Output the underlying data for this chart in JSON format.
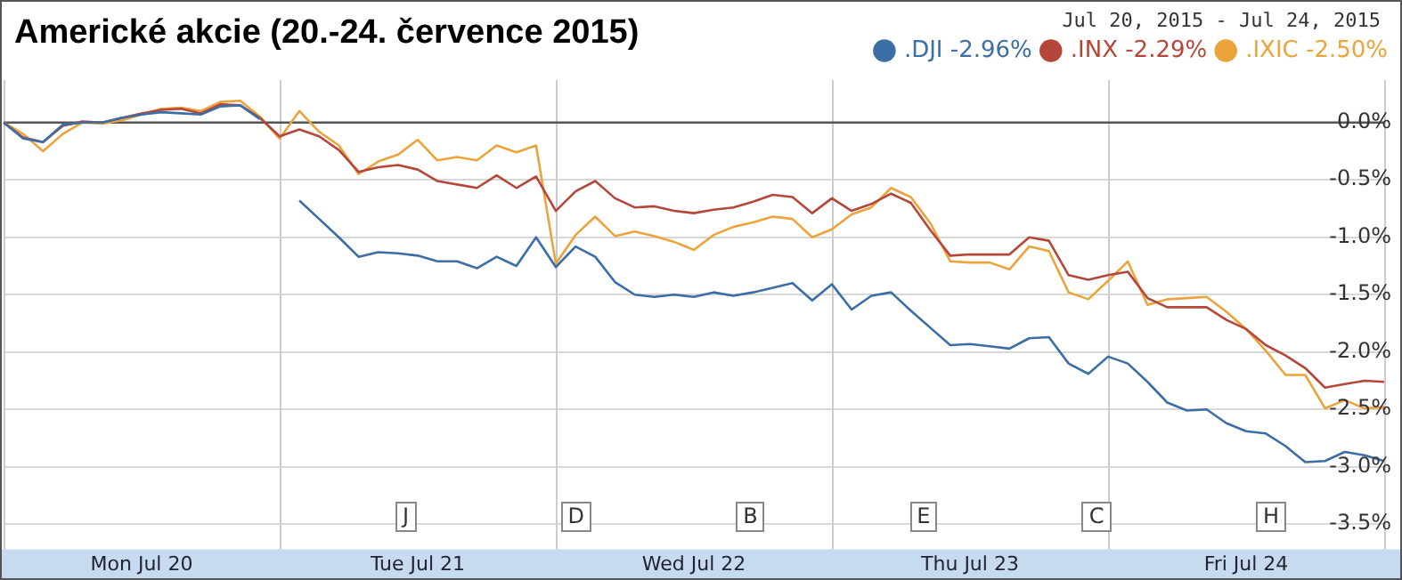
{
  "chart_data": {
    "type": "line",
    "title": "Americké akcie (20.-24. července 2015)",
    "subtitle": "Jul 20, 2015  -  Jul 24, 2015",
    "categories": [
      null,
      null,
      null,
      null,
      null,
      null,
      null,
      "Mon Jul 20",
      null,
      null,
      null,
      null,
      null,
      null,
      null,
      null,
      null,
      null,
      null,
      null,
      null,
      "Tue Jul 21",
      null,
      null,
      null,
      null,
      null,
      null,
      null,
      null,
      null,
      null,
      null,
      null,
      null,
      "Wed Jul 22",
      null,
      null,
      null,
      null,
      null,
      null,
      null,
      null,
      null,
      null,
      null,
      null,
      null,
      "Thu Jul 23",
      null,
      null,
      null,
      null,
      null,
      null,
      null,
      null,
      null,
      null,
      null,
      null,
      null,
      "Fri Jul 24",
      null,
      null,
      null,
      null,
      null,
      null,
      null
    ],
    "ylim": [
      -3.72,
      0.37
    ],
    "yticks": [
      {
        "value": 0,
        "label": "0.0%"
      },
      {
        "value": -0.5,
        "label": "-0.5%"
      },
      {
        "value": -1,
        "label": "-1.0%"
      },
      {
        "value": -1.5,
        "label": "-1.5%"
      },
      {
        "value": -2,
        "label": "-2.0%"
      },
      {
        "value": -2.5,
        "label": "-2.5%"
      },
      {
        "value": -3,
        "label": "-3.0%"
      },
      {
        "value": -3.5,
        "label": "-3.5%"
      }
    ],
    "grid": true,
    "legend": "top right",
    "marker": "none",
    "line_style": "solid",
    "ref_lines": [
      {
        "axis": "y",
        "value": 0,
        "color": "#555555"
      }
    ],
    "annotations": [
      "J",
      "D",
      "B",
      "E",
      "C",
      "H"
    ],
    "series": [
      {
        "name": ".DJI -2.96%",
        "color": "#3a6ea5",
        "values": [
          0,
          -0.14,
          -0.17,
          -0.02,
          0.0,
          0.0,
          0.04,
          0.07,
          0.09,
          0.08,
          0.07,
          0.14,
          0.15,
          0.03,
          null,
          -0.68,
          -0.84,
          -1.0,
          -1.17,
          -1.13,
          -1.14,
          -1.16,
          -1.21,
          -1.21,
          -1.27,
          -1.17,
          -1.25,
          -1.0,
          -1.26,
          -1.08,
          -1.17,
          -1.39,
          -1.5,
          -1.52,
          -1.5,
          -1.52,
          -1.48,
          -1.51,
          -1.48,
          -1.44,
          -1.4,
          -1.55,
          -1.41,
          -1.63,
          -1.51,
          -1.48,
          -1.64,
          -1.79,
          -1.94,
          -1.93,
          -1.95,
          -1.97,
          -1.88,
          -1.87,
          -2.1,
          -2.19,
          -2.04,
          -2.1,
          -2.26,
          -2.44,
          -2.51,
          -2.5,
          -2.62,
          -2.69,
          -2.71,
          -2.82,
          -2.96,
          -2.95,
          -2.87,
          -2.9,
          -2.95
        ]
      },
      {
        "name": ".INX -2.29%",
        "color": "#b5473a",
        "values": [
          0,
          -0.13,
          -0.17,
          -0.03,
          0.01,
          0.0,
          0.04,
          0.08,
          0.11,
          0.12,
          0.08,
          0.16,
          0.15,
          0.04,
          -0.12,
          -0.06,
          -0.12,
          -0.24,
          -0.43,
          -0.39,
          -0.37,
          -0.41,
          -0.51,
          -0.54,
          -0.57,
          -0.46,
          -0.57,
          -0.47,
          -0.77,
          -0.6,
          -0.51,
          -0.66,
          -0.74,
          -0.73,
          -0.77,
          -0.79,
          -0.76,
          -0.74,
          -0.69,
          -0.63,
          -0.65,
          -0.79,
          -0.66,
          -0.77,
          -0.71,
          -0.62,
          -0.7,
          -0.94,
          -1.16,
          -1.15,
          -1.15,
          -1.15,
          -1.0,
          -1.03,
          -1.33,
          -1.37,
          -1.33,
          -1.3,
          -1.53,
          -1.61,
          -1.61,
          -1.61,
          -1.72,
          -1.8,
          -1.94,
          -2.03,
          -2.14,
          -2.31,
          -2.28,
          -2.25,
          -2.26
        ]
      },
      {
        "name": ".IXIC -2.50%",
        "color": "#eba33b",
        "values": [
          0,
          -0.1,
          -0.25,
          -0.1,
          0.0,
          -0.01,
          0.02,
          0.07,
          0.12,
          0.13,
          0.1,
          0.18,
          0.19,
          0.05,
          -0.14,
          0.1,
          -0.08,
          -0.2,
          -0.45,
          -0.34,
          -0.28,
          -0.15,
          -0.33,
          -0.3,
          -0.33,
          -0.2,
          -0.26,
          -0.2,
          -1.23,
          -0.98,
          -0.82,
          -0.99,
          -0.95,
          -0.99,
          -1.04,
          -1.11,
          -0.98,
          -0.91,
          -0.87,
          -0.82,
          -0.84,
          -1.0,
          -0.93,
          -0.8,
          -0.74,
          -0.57,
          -0.65,
          -0.88,
          -1.21,
          -1.22,
          -1.22,
          -1.28,
          -1.08,
          -1.12,
          -1.48,
          -1.54,
          -1.38,
          -1.21,
          -1.59,
          -1.54,
          -1.53,
          -1.52,
          -1.65,
          -1.8,
          -1.99,
          -2.2,
          -2.2,
          -2.49,
          -2.42,
          -2.49,
          -2.48
        ]
      }
    ]
  }
}
